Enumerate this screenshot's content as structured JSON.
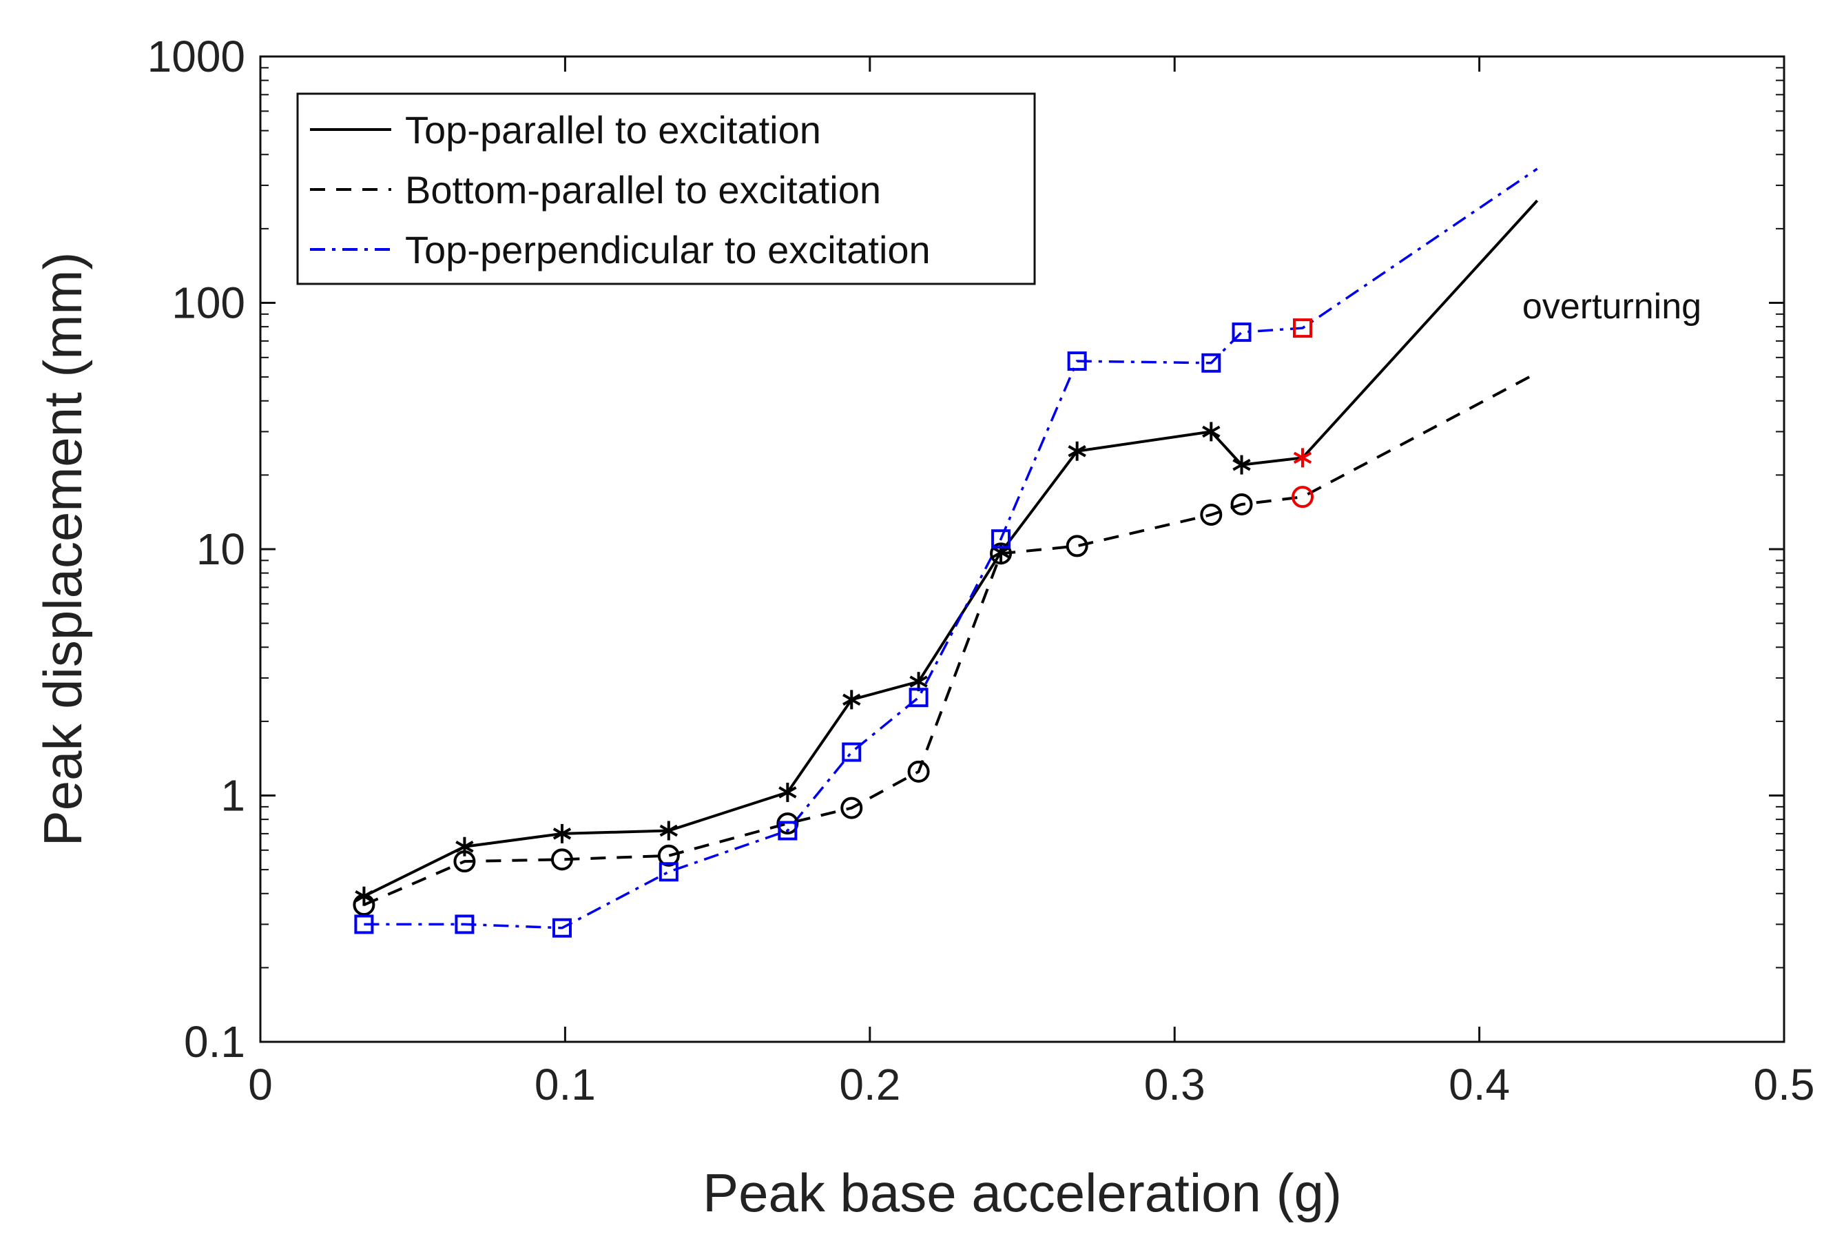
{
  "chart_data": {
    "type": "line",
    "title": "",
    "xlabel": "Peak base acceleration (g)",
    "ylabel": "Peak displacement (mm)",
    "xlim": [
      0,
      0.5
    ],
    "ylim": [
      0.1,
      1000
    ],
    "yscale": "log",
    "x_ticks": [
      0,
      0.1,
      0.2,
      0.3,
      0.4,
      0.5
    ],
    "x_tick_labels": [
      "0",
      "0.1",
      "0.2",
      "0.3",
      "0.4",
      "0.5"
    ],
    "y_ticks": [
      0.1,
      1,
      10,
      100,
      1000
    ],
    "y_tick_labels": [
      "0.1",
      "1",
      "10",
      "100",
      "1000"
    ],
    "grid": false,
    "legend_position": "top-left",
    "series": [
      {
        "name": "Top-parallel to excitation",
        "line_style": "solid",
        "color": "#000000",
        "marker": "asterisk",
        "x": [
          0.034,
          0.067,
          0.099,
          0.134,
          0.173,
          0.194,
          0.216,
          0.243,
          0.268,
          0.312,
          0.322,
          0.342
        ],
        "y": [
          0.39,
          0.62,
          0.7,
          0.72,
          1.03,
          2.45,
          2.9,
          9.7,
          25,
          30,
          22,
          23.5
        ],
        "extension": {
          "x": 0.419,
          "y": 260
        }
      },
      {
        "name": "Bottom-parallel to excitation",
        "line_style": "dashed",
        "color": "#000000",
        "marker": "circle",
        "x": [
          0.034,
          0.067,
          0.099,
          0.134,
          0.173,
          0.194,
          0.216,
          0.243,
          0.268,
          0.312,
          0.322,
          0.342
        ],
        "y": [
          0.36,
          0.54,
          0.55,
          0.57,
          0.77,
          0.89,
          1.25,
          9.6,
          10.3,
          13.8,
          15.2,
          16.3
        ],
        "extension": {
          "x": 0.419,
          "y": 52
        }
      },
      {
        "name": "Top-perpendicular to excitation",
        "line_style": "dashdot",
        "color": "#0000ee",
        "marker": "square",
        "x": [
          0.034,
          0.067,
          0.099,
          0.134,
          0.173,
          0.194,
          0.216,
          0.243,
          0.268,
          0.312,
          0.322,
          0.342
        ],
        "y": [
          0.3,
          0.3,
          0.29,
          0.49,
          0.72,
          1.5,
          2.5,
          11,
          58,
          57,
          76,
          79
        ],
        "extension": {
          "x": 0.419,
          "y": 350
        }
      }
    ],
    "highlight_color": "#ee0000",
    "highlighted_point_index": 11,
    "annotations": [
      {
        "text": "overturning",
        "x": 0.4,
        "y": 100
      }
    ]
  }
}
